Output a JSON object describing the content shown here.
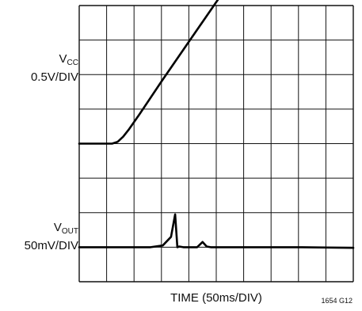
{
  "chart_data": {
    "type": "line",
    "grid": true,
    "grid_divisions": {
      "x": 10,
      "y": 8
    },
    "xlabel": "TIME (50ms/DIV)",
    "figure_id": "1654 G12",
    "series": [
      {
        "name_main": "V",
        "name_sub": "CC",
        "scale": "0.5V/DIV",
        "x_div": [
          0,
          1.2,
          1.4,
          1.6,
          1.8,
          2.2,
          3.0,
          4.0,
          5.0,
          5.8
        ],
        "y_div": [
          0,
          0,
          0.05,
          0.2,
          0.4,
          0.85,
          1.8,
          2.95,
          4.1,
          5.0
        ]
      },
      {
        "name_main": "V",
        "name_sub": "OUT",
        "scale": "50mV/DIV",
        "x_div": [
          0,
          2.6,
          3.05,
          3.35,
          3.5,
          3.58,
          3.65,
          3.8,
          4.3,
          4.5,
          4.65,
          4.8,
          6.0,
          8.0,
          10.0
        ],
        "y_div": [
          0,
          0,
          0.05,
          0.3,
          0.95,
          0,
          0.02,
          0,
          0,
          0.15,
          0.02,
          0,
          0,
          0,
          -0.02
        ]
      }
    ]
  }
}
